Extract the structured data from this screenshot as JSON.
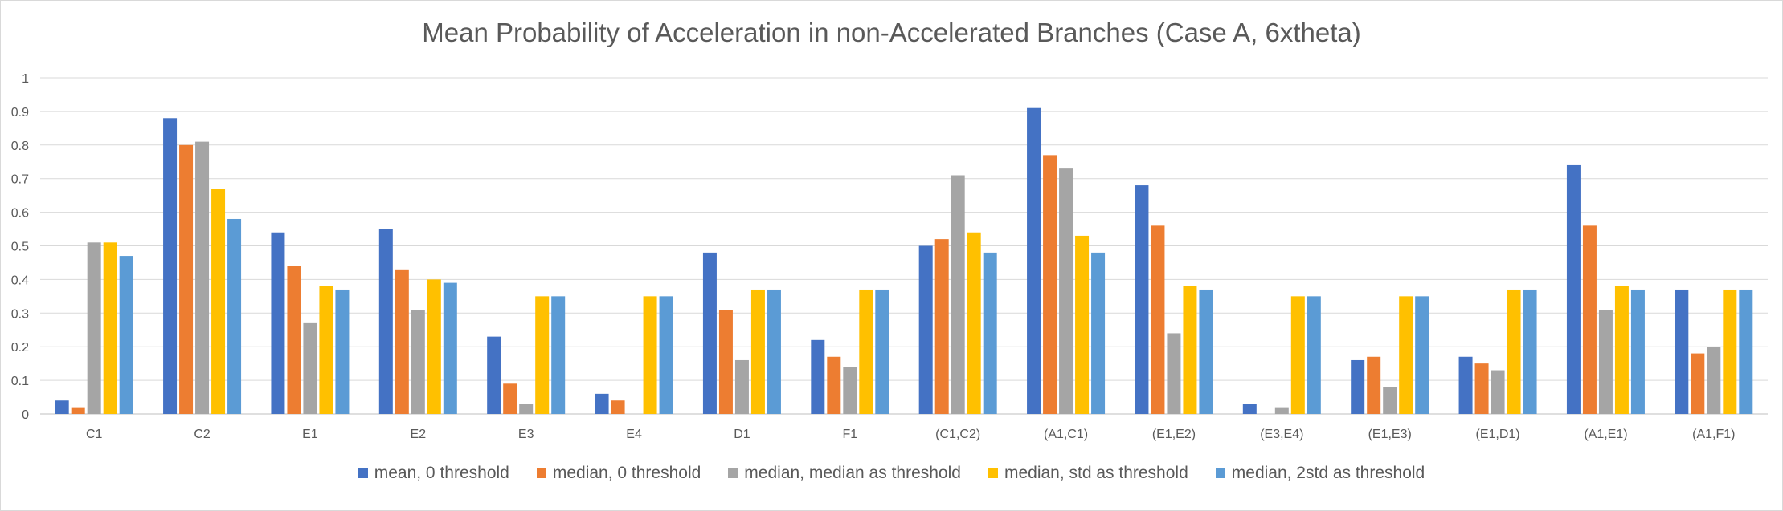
{
  "chart_data": {
    "type": "bar",
    "title": "Mean Probability of Acceleration in non-Accelerated Branches (Case A, 6xtheta)",
    "xlabel": "",
    "ylabel": "",
    "ylim": [
      0,
      1
    ],
    "yticks": [
      "0",
      "0.1",
      "0.2",
      "0.3",
      "0.4",
      "0.5",
      "0.6",
      "0.7",
      "0.8",
      "0.9",
      "1"
    ],
    "grid": true,
    "legend_position": "bottom",
    "categories": [
      "C1",
      "C2",
      "E1",
      "E2",
      "E3",
      "E4",
      "D1",
      "F1",
      "(C1,C2)",
      "(A1,C1)",
      "(E1,E2)",
      "(E3,E4)",
      "(E1,E3)",
      "(E1,D1)",
      "(A1,E1)",
      "(A1,F1)"
    ],
    "series": [
      {
        "name": "mean, 0 threshold",
        "color": "#4472c4",
        "values": [
          0.04,
          0.88,
          0.54,
          0.55,
          0.23,
          0.06,
          0.48,
          0.22,
          0.5,
          0.91,
          0.68,
          0.03,
          0.16,
          0.17,
          0.74,
          0.37
        ]
      },
      {
        "name": "median, 0 threshold",
        "color": "#ed7d31",
        "values": [
          0.02,
          0.8,
          0.44,
          0.43,
          0.09,
          0.04,
          0.31,
          0.17,
          0.52,
          0.77,
          0.56,
          0.0,
          0.17,
          0.15,
          0.56,
          0.18
        ]
      },
      {
        "name": "median, median as threshold",
        "color": "#a5a5a5",
        "values": [
          0.51,
          0.81,
          0.27,
          0.31,
          0.03,
          0.0,
          0.16,
          0.14,
          0.71,
          0.73,
          0.24,
          0.02,
          0.08,
          0.13,
          0.31,
          0.2
        ]
      },
      {
        "name": "median, std as threshold",
        "color": "#ffc000",
        "values": [
          0.51,
          0.67,
          0.38,
          0.4,
          0.35,
          0.35,
          0.37,
          0.37,
          0.54,
          0.53,
          0.38,
          0.35,
          0.35,
          0.37,
          0.38,
          0.37
        ]
      },
      {
        "name": "median, 2std as threshold",
        "color": "#5b9bd5",
        "values": [
          0.47,
          0.58,
          0.37,
          0.39,
          0.35,
          0.35,
          0.37,
          0.37,
          0.48,
          0.48,
          0.37,
          0.35,
          0.35,
          0.37,
          0.37,
          0.37
        ]
      }
    ]
  }
}
